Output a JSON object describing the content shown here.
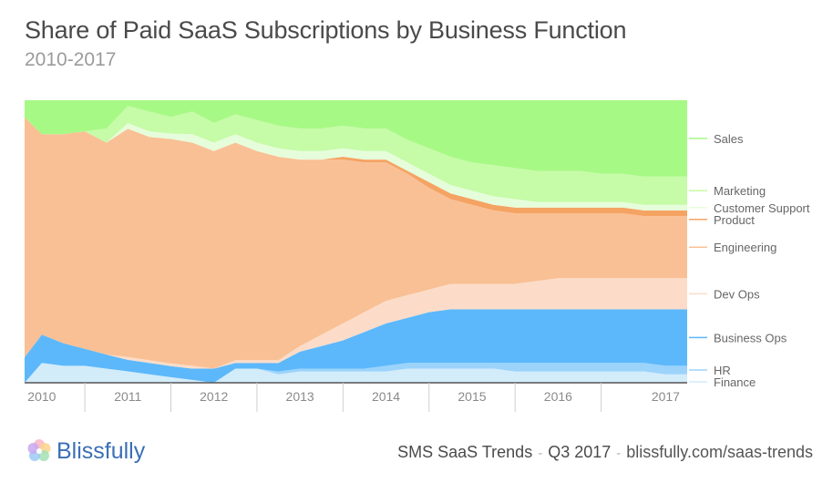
{
  "title": "Share of Paid SaaS Subscriptions by Business Function",
  "subtitle": "2010-2017",
  "footer": {
    "logo_text": "Blissfully",
    "report": "SMS SaaS Trends",
    "period": "Q3 2017",
    "url": "blissfully.com/saas-trends"
  },
  "colors": {
    "Finance": "#d3ecfa",
    "HR": "#9cd3fb",
    "Business Ops": "#5cb8fb",
    "Dev Ops": "#fcdcc8",
    "Engineering": "#f9c095",
    "Product": "#f5a363",
    "Customer Support": "#e6fddb",
    "Marketing": "#c6fba7",
    "Sales": "#a7f985"
  },
  "chart_data": {
    "type": "area",
    "stacked": true,
    "normalized": true,
    "x_ticks": [
      "2010",
      "2011",
      "2012",
      "2013",
      "2014",
      "2015",
      "2016",
      "2017"
    ],
    "x": [
      2009.8,
      2010.0,
      2010.25,
      2010.5,
      2010.75,
      2011.0,
      2011.25,
      2011.5,
      2011.75,
      2012.0,
      2012.25,
      2012.5,
      2012.75,
      2013.0,
      2013.25,
      2013.5,
      2013.75,
      2014.0,
      2014.25,
      2014.5,
      2014.75,
      2015.0,
      2015.25,
      2015.5,
      2015.75,
      2016.0,
      2016.25,
      2016.5,
      2016.75,
      2017.0,
      2017.25,
      2017.5
    ],
    "ylim": [
      0,
      1
    ],
    "series": [
      {
        "name": "Finance",
        "values": [
          0.0,
          0.07,
          0.06,
          0.06,
          0.05,
          0.04,
          0.03,
          0.02,
          0.01,
          0.0,
          0.05,
          0.05,
          0.03,
          0.04,
          0.04,
          0.04,
          0.04,
          0.04,
          0.05,
          0.05,
          0.05,
          0.05,
          0.05,
          0.04,
          0.04,
          0.04,
          0.04,
          0.04,
          0.04,
          0.04,
          0.03,
          0.03
        ]
      },
      {
        "name": "HR",
        "values": [
          0.0,
          0.0,
          0.0,
          0.0,
          0.0,
          0.0,
          0.0,
          0.0,
          0.0,
          0.0,
          0.0,
          0.0,
          0.01,
          0.01,
          0.01,
          0.01,
          0.01,
          0.02,
          0.02,
          0.02,
          0.02,
          0.02,
          0.02,
          0.03,
          0.03,
          0.03,
          0.03,
          0.03,
          0.03,
          0.03,
          0.03,
          0.03
        ]
      },
      {
        "name": "Business Ops",
        "values": [
          0.09,
          0.1,
          0.08,
          0.06,
          0.05,
          0.04,
          0.04,
          0.04,
          0.04,
          0.05,
          0.02,
          0.02,
          0.03,
          0.06,
          0.08,
          0.1,
          0.13,
          0.15,
          0.16,
          0.18,
          0.19,
          0.19,
          0.19,
          0.19,
          0.19,
          0.19,
          0.19,
          0.19,
          0.19,
          0.19,
          0.2,
          0.2
        ]
      },
      {
        "name": "Dev Ops",
        "values": [
          0.0,
          0.0,
          0.0,
          0.0,
          0.0,
          0.01,
          0.01,
          0.01,
          0.01,
          0.0,
          0.01,
          0.01,
          0.01,
          0.02,
          0.04,
          0.06,
          0.07,
          0.08,
          0.08,
          0.08,
          0.09,
          0.09,
          0.09,
          0.09,
          0.1,
          0.11,
          0.11,
          0.11,
          0.11,
          0.11,
          0.11,
          0.11
        ]
      },
      {
        "name": "Engineering",
        "values": [
          0.85,
          0.71,
          0.74,
          0.77,
          0.75,
          0.8,
          0.79,
          0.81,
          0.79,
          0.77,
          0.77,
          0.74,
          0.72,
          0.66,
          0.62,
          0.58,
          0.53,
          0.49,
          0.43,
          0.36,
          0.3,
          0.28,
          0.26,
          0.25,
          0.24,
          0.23,
          0.23,
          0.23,
          0.23,
          0.22,
          0.22,
          0.22
        ]
      },
      {
        "name": "Product",
        "values": [
          0.0,
          0.0,
          0.0,
          0.0,
          0.0,
          0.0,
          0.0,
          0.0,
          0.0,
          0.0,
          0.0,
          0.0,
          0.0,
          0.0,
          0.0,
          0.01,
          0.01,
          0.01,
          0.01,
          0.02,
          0.02,
          0.02,
          0.02,
          0.02,
          0.02,
          0.02,
          0.02,
          0.02,
          0.02,
          0.02,
          0.02,
          0.02
        ]
      },
      {
        "name": "Customer Support",
        "values": [
          0.0,
          0.0,
          0.0,
          0.0,
          0.0,
          0.02,
          0.02,
          0.02,
          0.03,
          0.03,
          0.03,
          0.03,
          0.03,
          0.03,
          0.03,
          0.03,
          0.03,
          0.03,
          0.03,
          0.03,
          0.03,
          0.03,
          0.03,
          0.03,
          0.02,
          0.02,
          0.02,
          0.02,
          0.02,
          0.02,
          0.02,
          0.02
        ]
      },
      {
        "name": "Marketing",
        "values": [
          0.0,
          0.0,
          0.0,
          0.0,
          0.05,
          0.06,
          0.07,
          0.06,
          0.08,
          0.07,
          0.07,
          0.08,
          0.08,
          0.08,
          0.08,
          0.08,
          0.08,
          0.08,
          0.08,
          0.09,
          0.1,
          0.1,
          0.11,
          0.11,
          0.11,
          0.11,
          0.11,
          0.1,
          0.1,
          0.1,
          0.1,
          0.1
        ]
      },
      {
        "name": "Sales",
        "values": [
          0.06,
          0.12,
          0.12,
          0.11,
          0.1,
          0.02,
          0.04,
          0.06,
          0.04,
          0.08,
          0.05,
          0.07,
          0.09,
          0.1,
          0.1,
          0.09,
          0.1,
          0.1,
          0.14,
          0.17,
          0.2,
          0.22,
          0.23,
          0.24,
          0.25,
          0.25,
          0.25,
          0.26,
          0.26,
          0.27,
          0.27,
          0.27
        ]
      }
    ],
    "legend_labels": [
      "Sales",
      "Marketing",
      "Customer Support",
      "Product",
      "Engineering",
      "Dev Ops",
      "Business Ops",
      "HR",
      "Finance"
    ],
    "legend_position": "right"
  }
}
